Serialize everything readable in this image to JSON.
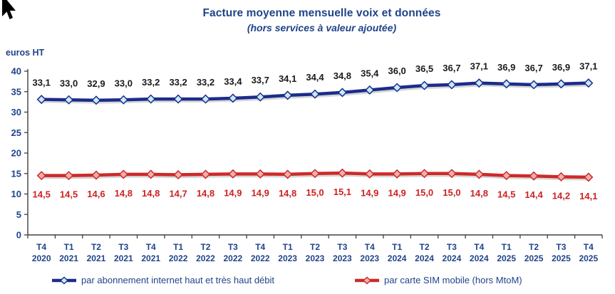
{
  "title": "Facture moyenne mensuelle voix et données",
  "subtitle": "(hors services à valeur ajoutée)",
  "units_label": "euros HT",
  "colors": {
    "text_navy": "#1F4389",
    "axis_line": "#404040",
    "blue_line": "#1B2C8C",
    "blue_marker_fill": "#C9EAF8",
    "blue_label_text": "#1A1A1A",
    "red_line": "#CC2A29",
    "red_marker_fill": "#F3AEAC",
    "red_label_text": "#CC2222",
    "line_shadow": "#C8C8C8"
  },
  "chart_data": {
    "type": "line",
    "title": "Facture moyenne mensuelle voix et données",
    "subtitle": "(hors services à valeur ajoutée)",
    "ylabel": "euros HT",
    "ylim": [
      0,
      40
    ],
    "ytick_step": 5,
    "grid": false,
    "legend_position": "bottom",
    "categories": [
      "T4 2020",
      "T1 2021",
      "T2 2021",
      "T3 2021",
      "T4 2021",
      "T1 2022",
      "T2 2022",
      "T3 2022",
      "T4 2022",
      "T1 2023",
      "T2 2023",
      "T3 2023",
      "T4 2023",
      "T1 2024",
      "T2 2024",
      "T3 2024",
      "T4 2024",
      "T1 2025",
      "T2 2025",
      "T3 2025",
      "T4 2025"
    ],
    "series": [
      {
        "name": "par abonnement internet haut et très haut débit",
        "values": [
          33.1,
          33.0,
          32.9,
          33.0,
          33.2,
          33.2,
          33.2,
          33.4,
          33.7,
          34.1,
          34.4,
          34.8,
          35.4,
          36.0,
          36.5,
          36.7,
          37.1,
          36.9,
          36.7,
          36.9,
          37.1
        ],
        "color": "#1B2C8C",
        "marker": "diamond",
        "marker_fill": "#C9EAF8",
        "label_color": "#1A1A1A",
        "label_position": "above"
      },
      {
        "name": "par carte SIM mobile (hors MtoM)",
        "values": [
          14.5,
          14.5,
          14.6,
          14.8,
          14.8,
          14.7,
          14.8,
          14.9,
          14.9,
          14.8,
          15.0,
          15.1,
          14.9,
          14.9,
          15.0,
          15.0,
          14.8,
          14.5,
          14.4,
          14.2,
          14.1
        ],
        "color": "#CC2A29",
        "marker": "diamond",
        "marker_fill": "#F3AEAC",
        "label_color": "#CC2222",
        "label_position": "below"
      }
    ]
  }
}
